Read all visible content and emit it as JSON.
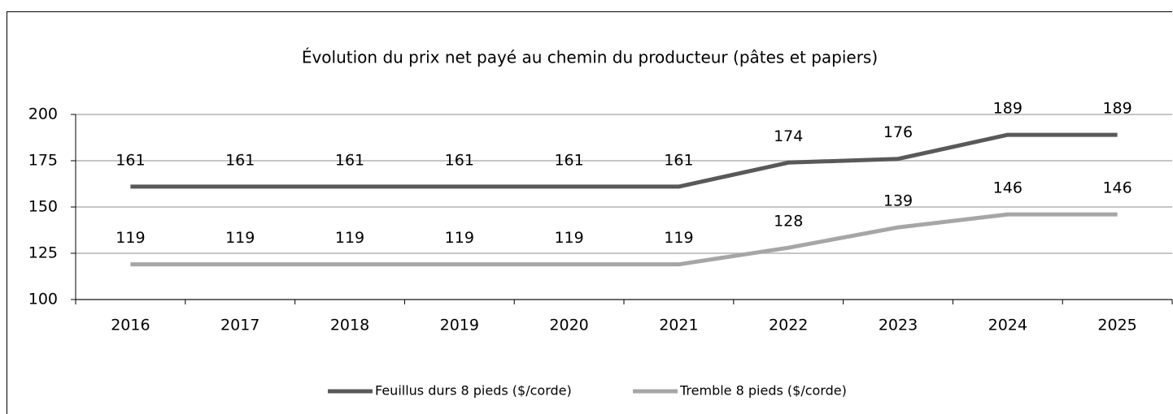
{
  "chart_data": {
    "type": "line",
    "title": "Évolution du prix net payé au chemin du producteur (pâtes et papiers)",
    "categories": [
      "2016",
      "2017",
      "2018",
      "2019",
      "2020",
      "2021",
      "2022",
      "2023",
      "2024",
      "2025"
    ],
    "series": [
      {
        "name": "Feuillus durs 8 pieds ($/corde)",
        "color": "#595959",
        "values": [
          161,
          161,
          161,
          161,
          161,
          161,
          174,
          176,
          189,
          189
        ]
      },
      {
        "name": "Tremble 8 pieds ($/corde)",
        "color": "#a6a6a6",
        "values": [
          119,
          119,
          119,
          119,
          119,
          119,
          128,
          139,
          146,
          146
        ]
      }
    ],
    "ylim": [
      100,
      200
    ],
    "yticks": [
      100,
      125,
      150,
      175,
      200
    ],
    "grid": true,
    "legend": "bottom"
  }
}
